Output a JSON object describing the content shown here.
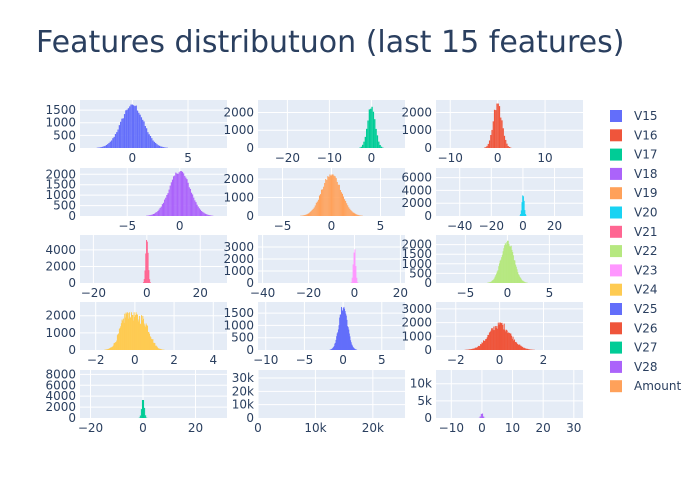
{
  "title": "Features distributuon (last 15 features)",
  "colors": {
    "plot_bg": "#e5ecf6",
    "grid": "#ffffff",
    "text": "#2a3f5f"
  },
  "chart_data": {
    "type": "bar",
    "grid": true,
    "legend_placement": "right",
    "legend": [
      {
        "name": "V15",
        "color": "#636efa"
      },
      {
        "name": "V16",
        "color": "#EF553B"
      },
      {
        "name": "V17",
        "color": "#00cc96"
      },
      {
        "name": "V18",
        "color": "#ab63fa"
      },
      {
        "name": "V19",
        "color": "#FFA15A"
      },
      {
        "name": "V20",
        "color": "#19d3f3"
      },
      {
        "name": "V21",
        "color": "#FF6692"
      },
      {
        "name": "V22",
        "color": "#B6E880"
      },
      {
        "name": "V23",
        "color": "#FF97FF"
      },
      {
        "name": "V24",
        "color": "#FECB52"
      },
      {
        "name": "V25",
        "color": "#636efa"
      },
      {
        "name": "V26",
        "color": "#EF553B"
      },
      {
        "name": "V27",
        "color": "#00cc96"
      },
      {
        "name": "V28",
        "color": "#ab63fa"
      },
      {
        "name": "Amount",
        "color": "#FFA15A"
      }
    ],
    "panels": [
      {
        "series": "V15",
        "color": "#636efa",
        "xlim": [
          -4.7,
          8.5
        ],
        "ylim": [
          0,
          1900
        ],
        "xticks": [
          0,
          5
        ],
        "yticks": [
          0,
          500,
          1000,
          1500
        ],
        "dist": {
          "components": [
            {
              "mu": 0,
              "sigma": 1,
              "weight": 1
            }
          ],
          "peak": 1720,
          "bins": 55,
          "noise": 0.06
        }
      },
      {
        "series": "V16",
        "color": "#00cc96",
        "xlim": [
          -27,
          8
        ],
        "ylim": [
          0,
          2700
        ],
        "xticks": [
          -20,
          -10,
          0
        ],
        "yticks": [
          0,
          1000,
          2000
        ],
        "dist": {
          "components": [
            {
              "mu": 0,
              "sigma": 0.9,
              "weight": 1
            }
          ],
          "peak": 2400,
          "bins": 18,
          "noise": 0.08
        }
      },
      {
        "series": "V17",
        "color": "#EF553B",
        "xlim": [
          -13,
          18
        ],
        "ylim": [
          0,
          2700
        ],
        "xticks": [
          -10,
          0,
          10
        ],
        "yticks": [
          0,
          1000,
          2000
        ],
        "dist": {
          "components": [
            {
              "mu": 0,
              "sigma": 0.9,
              "weight": 1
            }
          ],
          "peak": 2500,
          "bins": 22,
          "noise": 0.12
        }
      },
      {
        "series": "V18",
        "color": "#ab63fa",
        "xlim": [
          -9.5,
          4.5
        ],
        "ylim": [
          0,
          2300
        ],
        "xticks": [
          -5,
          0
        ],
        "yticks": [
          0,
          500,
          1000,
          1500,
          2000
        ],
        "dist": {
          "components": [
            {
              "mu": 0,
              "sigma": 1,
              "weight": 1
            }
          ],
          "peak": 2150,
          "bins": 60,
          "noise": 0.05
        }
      },
      {
        "series": "V19",
        "color": "#FFA15A",
        "xlim": [
          -7.5,
          7.5
        ],
        "ylim": [
          0,
          2600
        ],
        "xticks": [
          -5,
          0,
          5
        ],
        "yticks": [
          0,
          1000,
          2000
        ],
        "dist": {
          "components": [
            {
              "mu": 0,
              "sigma": 1,
              "weight": 1
            }
          ],
          "peak": 2250,
          "bins": 60,
          "noise": 0.06
        }
      },
      {
        "series": "V20",
        "color": "#19d3f3",
        "xlim": [
          -55,
          38
        ],
        "ylim": [
          0,
          7500
        ],
        "xticks": [
          -40,
          -20,
          0,
          20
        ],
        "yticks": [
          0,
          2000,
          4000,
          6000
        ],
        "dist": {
          "components": [
            {
              "mu": 0,
              "sigma": 0.7,
              "weight": 1
            }
          ],
          "peak": 3300,
          "bins": 10,
          "noise": 0.1
        }
      },
      {
        "series": "V21",
        "color": "#FF6692",
        "xlim": [
          -25,
          30
        ],
        "ylim": [
          0,
          5800
        ],
        "xticks": [
          -20,
          0,
          20
        ],
        "yticks": [
          0,
          2000,
          4000
        ],
        "dist": {
          "components": [
            {
              "mu": 0,
              "sigma": 0.45,
              "weight": 1
            }
          ],
          "peak": 5200,
          "bins": 10,
          "noise": 0.1
        }
      },
      {
        "series": "V22",
        "color": "#FF97FF",
        "xlim": [
          -42,
          22
        ],
        "ylim": [
          0,
          4000
        ],
        "xticks": [
          -40,
          -20,
          0,
          20
        ],
        "yticks": [
          0,
          1000,
          2000,
          3000
        ],
        "dist": {
          "components": [
            {
              "mu": 0,
              "sigma": 0.5,
              "weight": 1
            }
          ],
          "peak": 2800,
          "bins": 8,
          "noise": 0.1
        }
      },
      {
        "series": "V23",
        "color": "#B6E880",
        "xlim": [
          -8.5,
          9
        ],
        "ylim": [
          0,
          2500
        ],
        "xticks": [
          -5,
          0,
          5
        ],
        "yticks": [
          0,
          500,
          1000,
          1500,
          2000
        ],
        "dist": {
          "components": [
            {
              "mu": 0,
              "sigma": 0.75,
              "weight": 1
            }
          ],
          "peak": 2200,
          "bins": 55,
          "noise": 0.08
        }
      },
      {
        "series": "V24",
        "color": "#FECB52",
        "xlim": [
          -2.8,
          4.7
        ],
        "ylim": [
          0,
          2800
        ],
        "xticks": [
          -2,
          0,
          2,
          4
        ],
        "yticks": [
          0,
          1000,
          2000
        ],
        "dist": {
          "components": [
            {
              "mu": -0.35,
              "sigma": 0.38,
              "weight": 1
            },
            {
              "mu": 0.45,
              "sigma": 0.33,
              "weight": 0.7
            }
          ],
          "peak": 2200,
          "bins": 90,
          "noise": 0.18
        }
      },
      {
        "series": "V25",
        "color": "#636efa",
        "xlim": [
          -11,
          8
        ],
        "ylim": [
          0,
          1950
        ],
        "xticks": [
          -10,
          -5,
          0,
          5
        ],
        "yticks": [
          0,
          500,
          1000,
          1500
        ],
        "dist": {
          "components": [
            {
              "mu": 0,
              "sigma": 0.55,
              "weight": 1
            }
          ],
          "peak": 1750,
          "bins": 45,
          "noise": 0.1
        }
      },
      {
        "series": "V26",
        "color": "#EF553B",
        "xlim": [
          -2.9,
          3.8
        ],
        "ylim": [
          0,
          3500
        ],
        "xticks": [
          -2,
          0,
          2
        ],
        "yticks": [
          0,
          1000,
          2000,
          3000
        ],
        "dist": {
          "components": [
            {
              "mu": 0,
              "sigma": 0.5,
              "weight": 1
            },
            {
              "mu": 0.05,
              "sigma": 0.03,
              "weight": 0.1
            }
          ],
          "peak": 2000,
          "bins": 95,
          "noise": 0.15
        }
      },
      {
        "series": "V27",
        "color": "#00cc96",
        "xlim": [
          -24,
          32
        ],
        "ylim": [
          0,
          8800
        ],
        "xticks": [
          -20,
          0,
          20
        ],
        "yticks": [
          0,
          2000,
          4000,
          6000,
          8000
        ],
        "dist": {
          "components": [
            {
              "mu": 0,
              "sigma": 0.5,
              "weight": 1
            }
          ],
          "peak": 3300,
          "bins": 8,
          "noise": 0.1
        }
      },
      {
        "series": "V28",
        "color": "#ab63fa",
        "xlim": [
          0,
          25600
        ],
        "ylim": [
          0,
          36000
        ],
        "xticks": [
          0,
          10000,
          20000
        ],
        "xticklabels": [
          "0",
          "10k",
          "20k"
        ],
        "yticks": [
          0,
          10000,
          20000,
          30000
        ],
        "yticklabels": [
          "0",
          "10k",
          "20k",
          "30k"
        ],
        "dist": {
          "components": [
            {
              "mu": 10,
              "sigma": 5,
              "weight": 1
            }
          ],
          "peak": 0,
          "bins": 1,
          "noise": 0
        }
      },
      {
        "series": "Amount",
        "color": "#ab63fa",
        "xlim": [
          -15,
          33
        ],
        "ylim": [
          0,
          14000
        ],
        "xticks": [
          -10,
          0,
          10,
          20,
          30
        ],
        "yticks": [
          0,
          5000,
          10000
        ],
        "yticklabels": [
          "0",
          "5k",
          "10k"
        ],
        "dist": {
          "components": [
            {
              "mu": 0,
              "sigma": 0.35,
              "weight": 1
            }
          ],
          "peak": 1300,
          "bins": 6,
          "noise": 0.1
        }
      }
    ]
  }
}
